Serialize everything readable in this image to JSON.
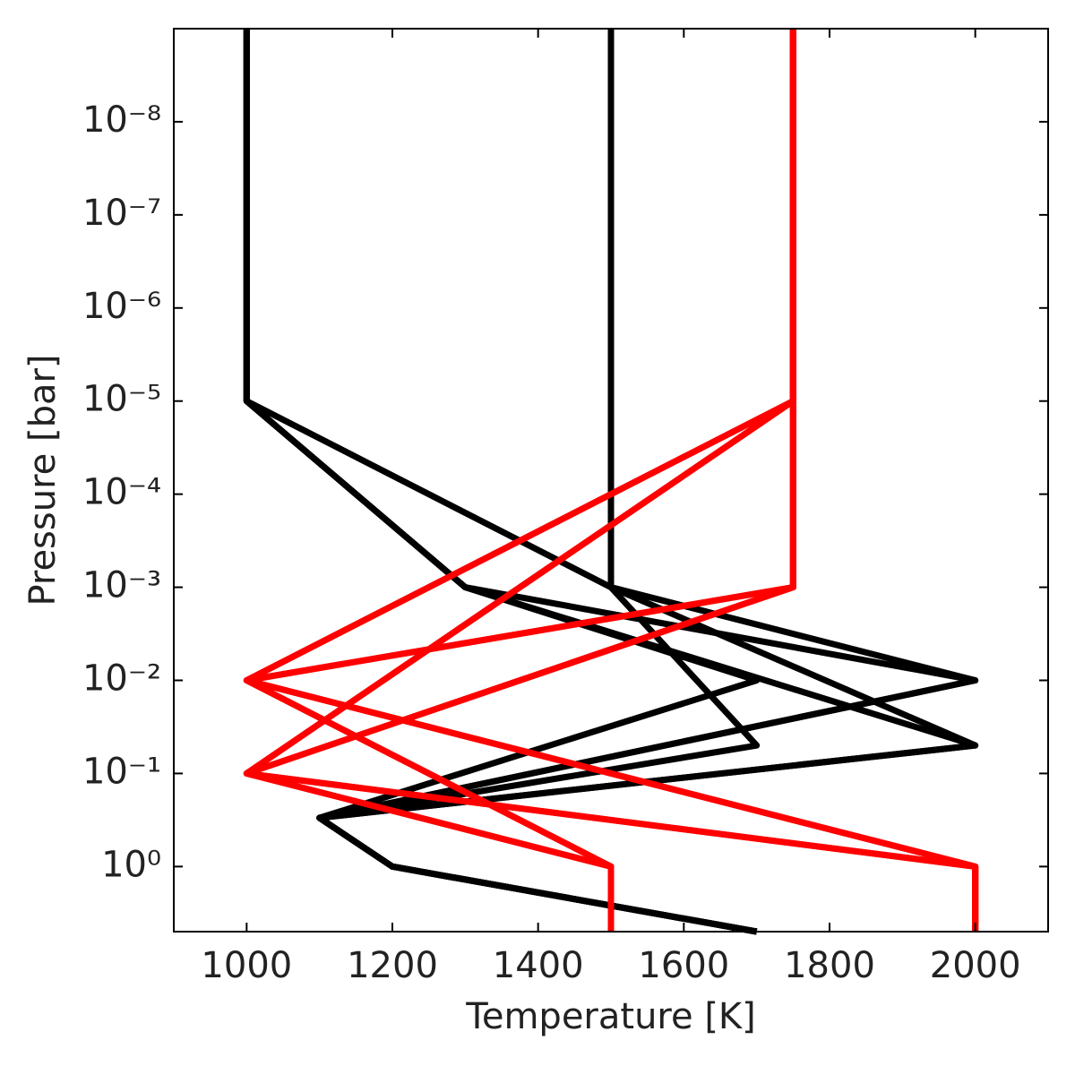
{
  "chart_data": {
    "type": "line",
    "x_label": "Temperature [K]",
    "y_label": "Pressure [bar]",
    "xlim": [
      900,
      2100
    ],
    "xticks": [
      1000,
      1200,
      1400,
      1600,
      1800,
      2000
    ],
    "ylim": [
      5,
      1e-09
    ],
    "y_scale": "log",
    "yticks": [
      {
        "value": 1e-08,
        "label": "10⁻⁸"
      },
      {
        "value": 1e-07,
        "label": "10⁻⁷"
      },
      {
        "value": 1e-06,
        "label": "10⁻⁶"
      },
      {
        "value": 1e-05,
        "label": "10⁻⁵"
      },
      {
        "value": 0.0001,
        "label": "10⁻⁴"
      },
      {
        "value": 0.001,
        "label": "10⁻³"
      },
      {
        "value": 0.01,
        "label": "10⁻²"
      },
      {
        "value": 0.1,
        "label": "10⁻¹"
      },
      {
        "value": 1,
        "label": "10⁰"
      }
    ],
    "series": [
      {
        "color": "#000000",
        "x": [
          1000,
          1000,
          1300,
          2000,
          1100,
          1200,
          1700
        ],
        "values": [
          1e-09,
          1e-05,
          0.001,
          0.01,
          0.3,
          1,
          5
        ]
      },
      {
        "color": "#000000",
        "x": [
          1000,
          1000,
          1300,
          1700,
          1100,
          1200,
          1700
        ],
        "values": [
          1e-09,
          1e-05,
          0.001,
          0.01,
          0.3,
          1,
          5
        ]
      },
      {
        "color": "#000000",
        "x": [
          1000,
          1000,
          1300,
          2000,
          1100,
          1200,
          1700
        ],
        "values": [
          1e-09,
          1e-05,
          0.001,
          0.05,
          0.3,
          1,
          5
        ]
      },
      {
        "color": "#000000",
        "x": [
          1500,
          1500,
          2000,
          1100,
          1200,
          1700
        ],
        "values": [
          1e-09,
          0.001,
          0.01,
          0.3,
          1,
          5
        ]
      },
      {
        "color": "#000000",
        "x": [
          1500,
          1500,
          1700,
          1100,
          1200,
          1700
        ],
        "values": [
          1e-09,
          0.001,
          0.05,
          0.3,
          1,
          5
        ]
      },
      {
        "color": "#000000",
        "x": [
          1000,
          1000,
          1500,
          2000,
          1100,
          1200,
          1700
        ],
        "values": [
          1e-09,
          1e-05,
          0.001,
          0.05,
          0.3,
          1,
          5
        ]
      },
      {
        "color": "#ff0000",
        "x": [
          1750,
          1750,
          1000,
          1500,
          1500
        ],
        "values": [
          1e-09,
          1e-05,
          0.01,
          1,
          5
        ]
      },
      {
        "color": "#ff0000",
        "x": [
          1750,
          1750,
          1000,
          2000,
          2000
        ],
        "values": [
          1e-09,
          1e-05,
          0.01,
          1,
          5
        ]
      },
      {
        "color": "#ff0000",
        "x": [
          1750,
          1750,
          1000,
          1500,
          1500
        ],
        "values": [
          1e-09,
          1e-05,
          0.1,
          1,
          5
        ]
      },
      {
        "color": "#ff0000",
        "x": [
          1750,
          1750,
          1000,
          2000,
          2000
        ],
        "values": [
          1e-09,
          1e-05,
          0.1,
          1,
          5
        ]
      },
      {
        "color": "#ff0000",
        "x": [
          1750,
          1750,
          1000,
          1500,
          1500
        ],
        "values": [
          1e-09,
          0.001,
          0.01,
          1,
          5
        ]
      },
      {
        "color": "#ff0000",
        "x": [
          1750,
          1750,
          1000,
          2000,
          2000
        ],
        "values": [
          1e-09,
          0.001,
          0.01,
          1,
          5
        ]
      },
      {
        "color": "#ff0000",
        "x": [
          1750,
          1750,
          1000,
          1500,
          1500
        ],
        "values": [
          1e-09,
          0.001,
          0.1,
          1,
          5
        ]
      },
      {
        "color": "#ff0000",
        "x": [
          1750,
          1750,
          1000,
          2000,
          2000
        ],
        "values": [
          1e-09,
          0.001,
          0.1,
          1,
          5
        ]
      }
    ]
  }
}
